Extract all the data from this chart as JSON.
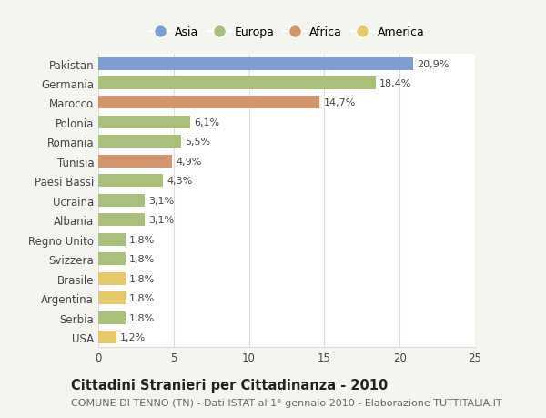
{
  "categories": [
    "Pakistan",
    "Germania",
    "Marocco",
    "Polonia",
    "Romania",
    "Tunisia",
    "Paesi Bassi",
    "Ucraina",
    "Albania",
    "Regno Unito",
    "Svizzera",
    "Brasile",
    "Argentina",
    "Serbia",
    "USA"
  ],
  "values": [
    20.9,
    18.4,
    14.7,
    6.1,
    5.5,
    4.9,
    4.3,
    3.1,
    3.1,
    1.8,
    1.8,
    1.8,
    1.8,
    1.8,
    1.2
  ],
  "labels": [
    "20,9%",
    "18,4%",
    "14,7%",
    "6,1%",
    "5,5%",
    "4,9%",
    "4,3%",
    "3,1%",
    "3,1%",
    "1,8%",
    "1,8%",
    "1,8%",
    "1,8%",
    "1,8%",
    "1,2%"
  ],
  "bar_colors": [
    "#7b9fd4",
    "#a8c07a",
    "#d4956a",
    "#a8c07a",
    "#a8c07a",
    "#d4956a",
    "#a8c07a",
    "#a8c07a",
    "#a8c07a",
    "#a8c07a",
    "#a8c07a",
    "#e8c96a",
    "#e8c96a",
    "#a8c07a",
    "#e8c96a"
  ],
  "legend_labels": [
    "Asia",
    "Europa",
    "Africa",
    "America"
  ],
  "legend_colors": [
    "#7b9fd4",
    "#a8c07a",
    "#d4956a",
    "#e8c96a"
  ],
  "xlim": [
    0,
    25
  ],
  "xticks": [
    0,
    5,
    10,
    15,
    20,
    25
  ],
  "title": "Cittadini Stranieri per Cittadinanza - 2010",
  "subtitle": "COMUNE DI TENNO (TN) - Dati ISTAT al 1° gennaio 2010 - Elaborazione TUTTITALIA.IT",
  "background_color": "#f5f5f0",
  "bar_bg_color": "#ffffff",
  "grid_color": "#dddddd",
  "title_fontsize": 10.5,
  "subtitle_fontsize": 8,
  "label_fontsize": 8,
  "tick_fontsize": 8.5,
  "legend_fontsize": 9
}
